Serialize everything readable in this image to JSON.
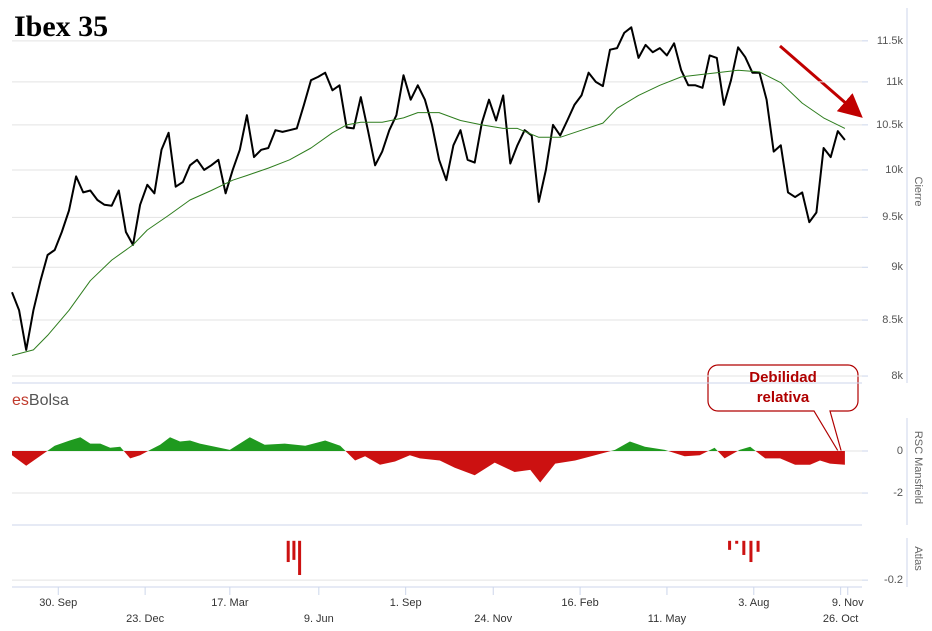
{
  "chart_data": [
    {
      "type": "line",
      "title": "Ibex 35",
      "brand": {
        "prefix": "es",
        "suffix": "Bolsa"
      },
      "y_label": "Cierre",
      "log_scale": true,
      "grid": true,
      "xlim": [
        0,
        119.4
      ],
      "ylim": [
        7940,
        12020
      ],
      "yticks": [
        {
          "value": 8000,
          "label": "8k"
        },
        {
          "value": 8500,
          "label": "8.5k"
        },
        {
          "value": 9000,
          "label": "9k"
        },
        {
          "value": 9500,
          "label": "9.5k"
        },
        {
          "value": 10000,
          "label": "10k"
        },
        {
          "value": 10500,
          "label": "10.5k"
        },
        {
          "value": 11000,
          "label": "11k"
        },
        {
          "value": 11500,
          "label": "11.5k"
        }
      ],
      "series": [
        {
          "color": "#000000",
          "x": [
            0,
            1,
            2,
            3,
            4,
            5,
            6,
            7,
            8,
            9,
            10,
            11,
            12,
            13,
            14,
            15,
            16,
            17,
            18,
            19,
            20,
            21,
            22,
            23,
            24,
            25,
            26,
            27,
            28,
            29,
            30,
            31,
            32,
            33,
            34,
            35,
            36,
            37,
            38,
            39,
            40,
            41,
            42,
            43,
            44,
            45,
            46,
            47,
            48,
            49,
            50,
            51,
            52,
            53,
            54,
            55,
            56,
            57,
            58,
            59,
            60,
            61,
            62,
            63,
            64,
            65,
            66,
            67,
            68,
            69,
            70,
            71,
            72,
            73,
            74,
            75,
            76,
            77,
            78,
            79,
            80,
            81,
            82,
            83,
            84,
            85,
            86,
            87,
            88,
            89,
            90,
            91,
            92,
            93,
            94,
            95,
            96,
            97,
            98,
            99,
            100,
            101,
            102,
            103,
            104,
            105,
            106,
            107,
            108,
            109,
            110,
            111,
            112,
            113,
            114,
            115,
            116,
            117
          ],
          "values": [
            8760,
            8590,
            8230,
            8590,
            8870,
            9120,
            9170,
            9350,
            9570,
            9930,
            9760,
            9780,
            9680,
            9630,
            9620,
            9780,
            9350,
            9220,
            9630,
            9840,
            9750,
            10220,
            10410,
            9820,
            9870,
            10050,
            10110,
            10000,
            10050,
            10110,
            9750,
            10000,
            10220,
            10610,
            10140,
            10220,
            10240,
            10440,
            10420,
            10440,
            10460,
            10730,
            11020,
            11060,
            11110,
            10900,
            10960,
            10470,
            10460,
            10820,
            10440,
            10050,
            10200,
            10440,
            10610,
            11080,
            10790,
            10960,
            10790,
            10500,
            10110,
            9890,
            10270,
            10440,
            10110,
            10080,
            10520,
            10790,
            10550,
            10840,
            10070,
            10270,
            10440,
            10380,
            9660,
            10000,
            10500,
            10380,
            10550,
            10730,
            10840,
            11110,
            11000,
            10950,
            11390,
            11410,
            11600,
            11670,
            11290,
            11450,
            11360,
            11410,
            11320,
            11470,
            11140,
            10960,
            10960,
            10930,
            11320,
            11290,
            10730,
            11020,
            11420,
            11300,
            11110,
            11110,
            10790,
            10200,
            10270,
            9760,
            9710,
            9760,
            9450,
            9550,
            10240,
            10140,
            10430,
            10330
          ]
        },
        {
          "color": "#2e7d1e",
          "x": [
            0,
            3,
            5,
            8,
            11,
            14,
            17,
            19,
            22,
            25,
            28,
            31,
            33,
            36,
            39,
            42,
            45,
            47,
            49,
            52,
            55,
            57,
            60,
            63,
            66,
            69,
            71,
            74,
            77,
            80,
            83,
            85,
            88,
            91,
            94,
            97,
            99,
            102,
            105,
            108,
            111,
            114,
            117
          ],
          "values": [
            8180,
            8230,
            8360,
            8590,
            8870,
            9070,
            9220,
            9370,
            9520,
            9680,
            9780,
            9890,
            9940,
            10020,
            10110,
            10240,
            10410,
            10500,
            10530,
            10530,
            10580,
            10640,
            10640,
            10550,
            10500,
            10460,
            10460,
            10360,
            10360,
            10440,
            10520,
            10690,
            10840,
            10960,
            11060,
            11090,
            11110,
            11140,
            11120,
            10990,
            10750,
            10580,
            10460
          ]
        }
      ]
    },
    {
      "type": "area",
      "y_label": "RSC Mansfield",
      "annotation": "Debilidad relativa",
      "grid": true,
      "xlim": [
        0,
        119.4
      ],
      "ylim": [
        -3.52,
        1.95
      ],
      "yticks": [
        0,
        -2
      ],
      "positive_color": "#1f9a1f",
      "negative_color": "#cc1111",
      "x": [
        0,
        2,
        3.9,
        6,
        8.1,
        9.6,
        11,
        12.4,
        13.8,
        15.2,
        16.6,
        18,
        19.4,
        20.8,
        22.2,
        23.6,
        25,
        26.4,
        28.5,
        30.6,
        33.4,
        35.5,
        38.3,
        41.2,
        44,
        46.1,
        48.2,
        49.6,
        51.7,
        53.8,
        55.9,
        57.3,
        60.1,
        62.2,
        65,
        67.8,
        70.6,
        72.8,
        74.2,
        76.3,
        79.1,
        81.9,
        84.7,
        86.8,
        88.9,
        91.7,
        94.5,
        96.6,
        98.7,
        100.1,
        102.2,
        103.7,
        105.8,
        107.9,
        110,
        112.1,
        113.5,
        114.9,
        117
      ],
      "values": [
        -0.2,
        -0.7,
        -0.25,
        0.25,
        0.5,
        0.65,
        0.35,
        0.35,
        0.15,
        0.2,
        -0.35,
        -0.2,
        0.05,
        0.3,
        0.65,
        0.45,
        0.5,
        0.35,
        0.2,
        0.05,
        0.65,
        0.3,
        0.35,
        0.25,
        0.5,
        0.25,
        -0.45,
        -0.25,
        -0.65,
        -0.5,
        -0.2,
        -0.35,
        -0.45,
        -0.8,
        -1.15,
        -0.55,
        -1,
        -0.9,
        -1.5,
        -0.6,
        -0.45,
        -0.2,
        0.05,
        0.45,
        0.2,
        0.05,
        -0.25,
        -0.2,
        0.15,
        -0.35,
        0.05,
        0.2,
        -0.35,
        -0.35,
        -0.65,
        -0.65,
        -0.45,
        -0.6,
        -0.65
      ]
    },
    {
      "type": "bar",
      "y_label": "Atlas",
      "grid": true,
      "color": "#cc1111",
      "xlim": [
        0,
        119.4
      ],
      "ylim": [
        -0.235,
        0.055
      ],
      "yticks": [
        -0.2
      ],
      "x": [
        38.8,
        39.6,
        40.4,
        100.8,
        101.8,
        102.8,
        103.8,
        104.8
      ],
      "values": [
        -0.108,
        -0.097,
        -0.174,
        -0.046,
        -0.015,
        -0.072,
        -0.108,
        -0.056
      ],
      "xticks": [
        {
          "value": 6.5,
          "label": "30. Sep"
        },
        {
          "value": 18.7,
          "label": "23. Dec"
        },
        {
          "value": 30.6,
          "label": "17. Mar"
        },
        {
          "value": 43.1,
          "label": "9. Jun"
        },
        {
          "value": 55.3,
          "label": "1. Sep"
        },
        {
          "value": 67.6,
          "label": "24. Nov"
        },
        {
          "value": 79.8,
          "label": "16. Feb"
        },
        {
          "value": 92,
          "label": "11. May"
        },
        {
          "value": 104.2,
          "label": "3. Aug"
        },
        {
          "value": 116.4,
          "label": "26. Oct"
        },
        {
          "value": 117.4,
          "label": "9. Nov"
        }
      ]
    }
  ]
}
